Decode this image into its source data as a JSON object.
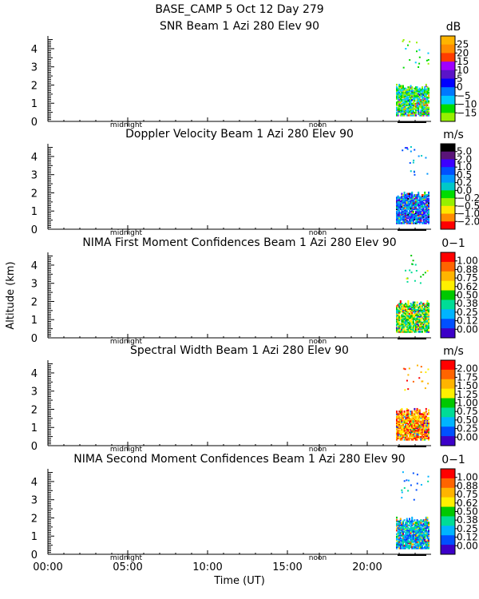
{
  "header": {
    "site_date": "BASE_CAMP    5 Oct 12 Day 279"
  },
  "chart_data": {
    "type": "heatmap",
    "xlabel": "Time (UT)",
    "ylabel": "Altitude (km)",
    "x_ticks": [
      "00:00",
      "05:00",
      "10:00",
      "15:00",
      "20:00"
    ],
    "x_tick_hours": [
      0,
      5,
      10,
      15,
      20
    ],
    "xlim_hours": [
      0,
      24
    ],
    "ylim_km": [
      0,
      4.7
    ],
    "y_ticks": [
      "0",
      "1",
      "2",
      "3",
      "4"
    ],
    "markers": [
      {
        "label": "midnight",
        "hour": 5
      },
      {
        "label": "noon",
        "hour": 17
      }
    ],
    "data_hours": [
      21.8,
      23.8
    ],
    "panels": [
      {
        "title": "SNR Beam 1 Azi 280 Elev 90",
        "unit": "dB",
        "colorbar_labels": [
          "25",
          "20",
          "15",
          "10",
          "5",
          "0",
          "−5",
          "−10",
          "−15"
        ],
        "colors": [
          "#ffb400",
          "#ff8c00",
          "#ff3c00",
          "#a000ff",
          "#5a14c8",
          "#0000ff",
          "#0078ff",
          "#00c8ff",
          "#00dc00",
          "#96f000"
        ],
        "dominant": [
          7,
          8,
          9
        ]
      },
      {
        "title": "Doppler Velocity Beam 1 Azi 280 Elev 90",
        "unit": "m/s",
        "colorbar_labels": [
          "5.0",
          "2.0",
          "1.0",
          "0.5",
          "0.2",
          "0.0",
          "−0.2",
          "−0.5",
          "−1.0",
          "−2.0"
        ],
        "colors": [
          "#000000",
          "#5a1478",
          "#3c00ff",
          "#0050ff",
          "#0096ff",
          "#00c8c8",
          "#00dc00",
          "#96f000",
          "#ffe600",
          "#ff8c00",
          "#ff0000"
        ],
        "dominant": [
          2,
          3,
          4,
          5
        ]
      },
      {
        "title": "NIMA First Moment Confidences Beam 1 Azi 280 Elev 90",
        "unit": "0−1",
        "colorbar_labels": [
          "1.00",
          "0.88",
          "0.75",
          "0.62",
          "0.50",
          "0.38",
          "0.25",
          "0.12",
          "0.00"
        ],
        "colors": [
          "#ff0000",
          "#ff6400",
          "#ffb400",
          "#fff000",
          "#00c800",
          "#00dc96",
          "#00b4ff",
          "#0050ff",
          "#3c00c8"
        ],
        "dominant": [
          4,
          5,
          3
        ]
      },
      {
        "title": "Spectral Width Beam 1 Azi 280 Elev 90",
        "unit": "m/s",
        "colorbar_labels": [
          "2.00",
          "1.75",
          "1.50",
          "1.25",
          "1.00",
          "0.75",
          "0.50",
          "0.25",
          "0.00"
        ],
        "colors": [
          "#ff0000",
          "#ff6400",
          "#ffb400",
          "#fff000",
          "#00c800",
          "#00dc96",
          "#00b4ff",
          "#0050ff",
          "#3c00c8"
        ],
        "dominant": [
          0,
          1,
          2,
          3
        ]
      },
      {
        "title": "NIMA Second Moment Confidences Beam 1 Azi 280 Elev 90",
        "unit": "0−1",
        "colorbar_labels": [
          "1.00",
          "0.88",
          "0.75",
          "0.62",
          "0.50",
          "0.38",
          "0.25",
          "0.12",
          "0.00"
        ],
        "colors": [
          "#ff0000",
          "#ff6400",
          "#ffb400",
          "#fff000",
          "#00c800",
          "#00dc96",
          "#00b4ff",
          "#0050ff",
          "#3c00c8"
        ],
        "dominant": [
          6,
          7,
          5
        ]
      }
    ]
  }
}
